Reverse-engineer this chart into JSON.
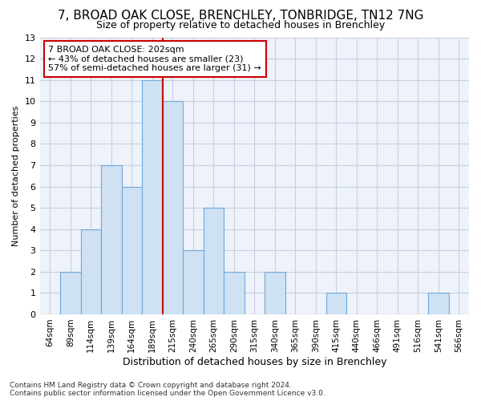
{
  "title": "7, BROAD OAK CLOSE, BRENCHLEY, TONBRIDGE, TN12 7NG",
  "subtitle": "Size of property relative to detached houses in Brenchley",
  "xlabel": "Distribution of detached houses by size in Brenchley",
  "ylabel": "Number of detached properties",
  "categories": [
    "64sqm",
    "89sqm",
    "114sqm",
    "139sqm",
    "164sqm",
    "189sqm",
    "215sqm",
    "240sqm",
    "265sqm",
    "290sqm",
    "315sqm",
    "340sqm",
    "365sqm",
    "390sqm",
    "415sqm",
    "440sqm",
    "466sqm",
    "491sqm",
    "516sqm",
    "541sqm",
    "566sqm"
  ],
  "values": [
    0,
    2,
    4,
    7,
    6,
    11,
    10,
    3,
    5,
    2,
    0,
    2,
    0,
    0,
    1,
    0,
    0,
    0,
    0,
    1,
    0
  ],
  "bar_color": "#cfe2f3",
  "bar_edge_color": "#6fa8dc",
  "vline_x": 5.5,
  "annotation_title": "7 BROAD OAK CLOSE: 202sqm",
  "annotation_line1": "← 43% of detached houses are smaller (23)",
  "annotation_line2": "57% of semi-detached houses are larger (31) →",
  "annotation_box_color": "#ffffff",
  "annotation_box_edge": "#cc0000",
  "vline_color": "#cc0000",
  "ylim": [
    0,
    13
  ],
  "yticks": [
    0,
    1,
    2,
    3,
    4,
    5,
    6,
    7,
    8,
    9,
    10,
    11,
    12,
    13
  ],
  "footer": "Contains HM Land Registry data © Crown copyright and database right 2024.\nContains public sector information licensed under the Open Government Licence v3.0.",
  "plot_bg_color": "#eef2fa",
  "fig_bg_color": "#ffffff",
  "grid_color": "#c8cfe0",
  "title_fontsize": 11,
  "subtitle_fontsize": 9,
  "ylabel_fontsize": 8,
  "xlabel_fontsize": 9,
  "tick_fontsize": 8,
  "xtick_fontsize": 7.5
}
